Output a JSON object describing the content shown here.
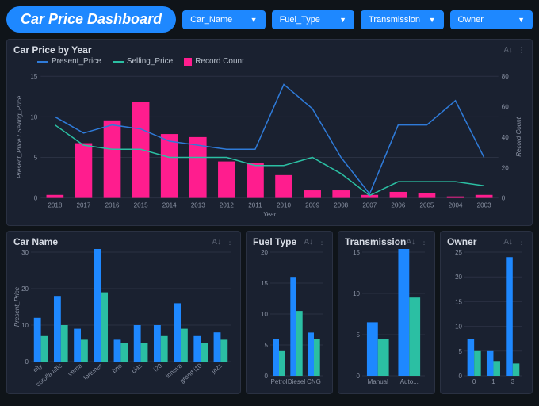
{
  "header": {
    "title": "Car Price Dashboard",
    "title_bg": "#1e88ff",
    "dropdowns": [
      {
        "label": "Car_Name"
      },
      {
        "label": "Fuel_Type"
      },
      {
        "label": "Transmission"
      },
      {
        "label": "Owner"
      }
    ],
    "dropdown_bg": "#1e88ff"
  },
  "colors": {
    "panel_bg": "#1a2130",
    "page_bg": "#0f1419",
    "grid": "#2a3142",
    "bar_pink": "#ff1d8e",
    "line_blue": "#2f7bd9",
    "line_teal": "#2bbfa3",
    "bar_blue1": "#1e88ff",
    "bar_blue2": "#12b5c9",
    "bar_teal": "#2bbfa3"
  },
  "main_chart": {
    "title": "Car Price by Year",
    "x_label": "Year",
    "y_left_label": "Present_Price / Selling_Price",
    "y_right_label": "Record Count",
    "y_left_max": 15,
    "y_left_ticks": [
      0,
      5,
      10,
      15
    ],
    "y_right_max": 80,
    "y_right_ticks": [
      0,
      20,
      40,
      60,
      80
    ],
    "legend": [
      {
        "label": "Present_Price",
        "color": "#2f7bd9",
        "type": "line"
      },
      {
        "label": "Selling_Price",
        "color": "#2bbfa3",
        "type": "line"
      },
      {
        "label": "Record Count",
        "color": "#ff1d8e",
        "type": "box"
      }
    ],
    "categories": [
      "2018",
      "2017",
      "2016",
      "2015",
      "2014",
      "2013",
      "2012",
      "2011",
      "2010",
      "2009",
      "2008",
      "2007",
      "2006",
      "2005",
      "2004",
      "2003"
    ],
    "record_count": [
      2,
      36,
      51,
      63,
      42,
      40,
      24,
      23,
      15,
      5,
      5,
      2,
      4,
      3,
      1,
      2
    ],
    "present_price": [
      10,
      8,
      9,
      8.5,
      7,
      6.5,
      6,
      6,
      14,
      11,
      5,
      0.5,
      9,
      9,
      12,
      5
    ],
    "selling_price": [
      9,
      6.5,
      6,
      6,
      5,
      5,
      5,
      4,
      4,
      5,
      3,
      0.3,
      2,
      2,
      2,
      1.5
    ]
  },
  "car_name_chart": {
    "title": "Car Name",
    "y_label": "Present_Price",
    "y_max": 30,
    "y_ticks": [
      0,
      10,
      20,
      30
    ],
    "categories": [
      "city",
      "corolla altis",
      "verna",
      "fortuner",
      "brio",
      "ciaz",
      "i20",
      "innova",
      "grand i10",
      "jazz"
    ],
    "series1": [
      12,
      18,
      9,
      31,
      6,
      10,
      10,
      16,
      7,
      8
    ],
    "series2": [
      7,
      10,
      6,
      19,
      5,
      5,
      7,
      9,
      5,
      6
    ],
    "color1": "#1e88ff",
    "color2": "#2bbfa3"
  },
  "fuel_chart": {
    "title": "Fuel Type",
    "y_max": 20,
    "y_ticks": [
      0,
      5,
      10,
      15,
      20
    ],
    "categories": [
      "Petrol",
      "Diesel",
      "CNG"
    ],
    "series1": [
      6,
      16,
      7
    ],
    "series2": [
      4,
      10.5,
      6
    ],
    "color1": "#1e88ff",
    "color2": "#2bbfa3"
  },
  "trans_chart": {
    "title": "Transmission",
    "y_max": 15,
    "y_ticks": [
      0,
      5,
      10,
      15
    ],
    "categories": [
      "Manual",
      "Auto..."
    ],
    "series1": [
      6.5,
      15.5
    ],
    "series2": [
      4.5,
      9.5
    ],
    "color1": "#1e88ff",
    "color2": "#2bbfa3"
  },
  "owner_chart": {
    "title": "Owner",
    "y_max": 25,
    "y_ticks": [
      0,
      5,
      10,
      15,
      20,
      25
    ],
    "categories": [
      "0",
      "1",
      "3"
    ],
    "series1": [
      7.5,
      5,
      24
    ],
    "series2": [
      5,
      3,
      2.5
    ],
    "color1": "#1e88ff",
    "color2": "#2bbfa3"
  }
}
